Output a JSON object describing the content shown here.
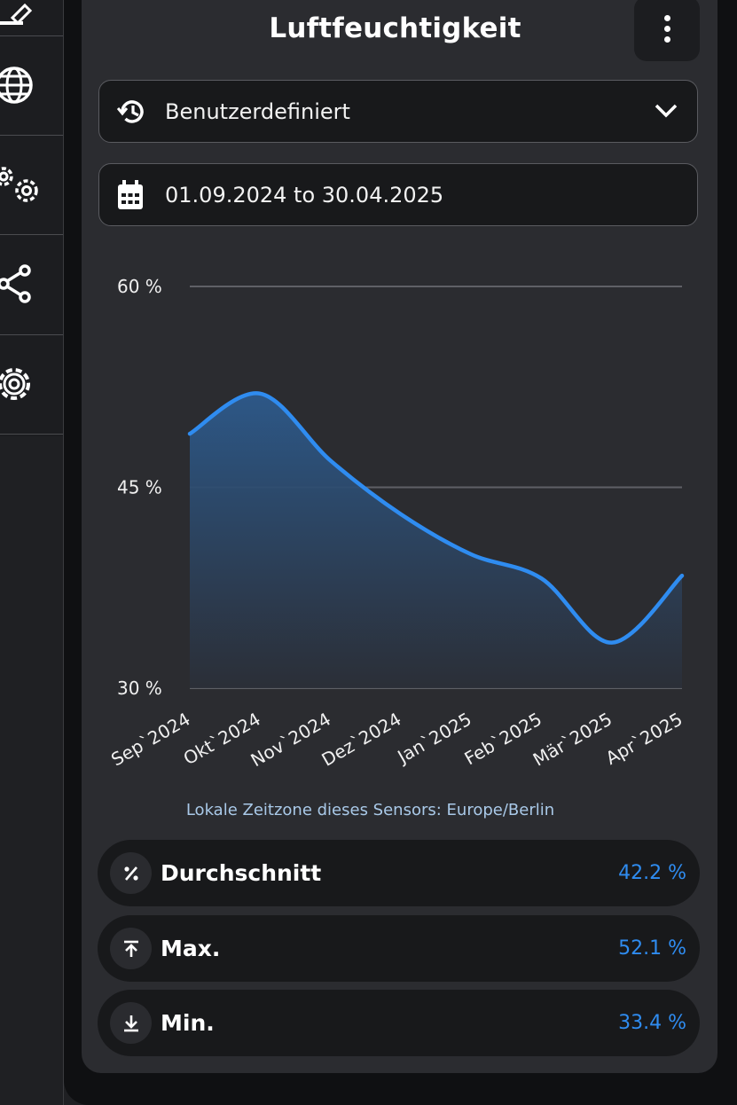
{
  "card": {
    "title": "Luftfeuchtigkeit",
    "menu_icon": "more-vert-icon"
  },
  "range_select": {
    "icon": "history-icon",
    "value": "Benutzerdefiniert",
    "chevron": "chevron-down-icon"
  },
  "date_range": {
    "icon": "calendar-icon",
    "value": "01.09.2024 to 30.04.2025"
  },
  "sidebar": {
    "items": [
      {
        "icon": "edit-icon"
      },
      {
        "icon": "globe-icon"
      },
      {
        "icon": "gears-icon"
      },
      {
        "icon": "share-icon"
      },
      {
        "icon": "gear-icon"
      }
    ]
  },
  "chart_data": {
    "type": "area",
    "categories": [
      "Sep`2024",
      "Okt`2024",
      "Nov`2024",
      "Dez`2024",
      "Jan`2025",
      "Feb`2025",
      "Mär`2025",
      "Apr`2025"
    ],
    "y_ticks": [
      "30 %",
      "45 %",
      "60 %"
    ],
    "ylim": [
      30,
      60
    ],
    "grid": true,
    "line_color": "#2f8cf0",
    "series": [
      {
        "values": [
          49.0,
          52.0,
          47.0,
          43.0,
          40.0,
          38.2,
          33.4,
          38.4
        ]
      }
    ]
  },
  "timezone_note": "Lokale Zeitzone dieses Sensors: Europe/Berlin",
  "stats": [
    {
      "icon": "percent-icon",
      "label": "Durchschnitt",
      "value": "42.2 %"
    },
    {
      "icon": "arrow-up-to-line-icon",
      "label": "Max.",
      "value": "52.1 %"
    },
    {
      "icon": "arrow-down-to-line-icon",
      "label": "Min.",
      "value": "33.4 %"
    }
  ],
  "colors": {
    "accent": "#2f8cf0",
    "background": "#2b2c30",
    "field": "#18191b"
  }
}
